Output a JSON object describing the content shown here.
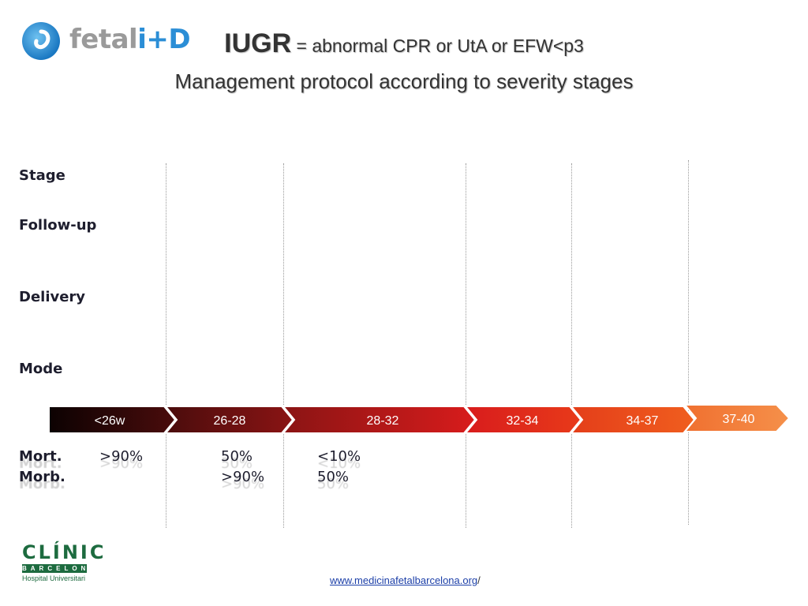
{
  "header": {
    "logo_text_main": "fetal",
    "logo_text_accent": "i+D",
    "title_bold": "IUGR",
    "title_rest": " = abnormal CPR or UtA or EFW<p3",
    "subtitle": "Management protocol according to severity stages"
  },
  "rows": {
    "stage": "Stage",
    "followup": "Follow-up",
    "delivery": "Delivery",
    "mode": "Mode"
  },
  "stages": [
    {
      "label": "<26w",
      "color": "#1a0606"
    },
    {
      "label": "26-28",
      "color": "#6e1212"
    },
    {
      "label": "28-32",
      "color": "#b8161a"
    },
    {
      "label": "32-34",
      "color": "#e0241c"
    },
    {
      "label": "34-37",
      "color": "#ea4a1a"
    },
    {
      "label": "37-40",
      "color": "#f07a2a"
    }
  ],
  "outcomes": {
    "mort_label": "Mort.",
    "morb_label": "Morb.",
    "mort_26": ">90%",
    "mort_28": "50%",
    "mort_32": "<10%",
    "morb_28": ">90%",
    "morb_32": "50%"
  },
  "footer": {
    "link": "www.medicinafetalbarcelona.org",
    "suffix": "/",
    "clinic_name": "CLÍNIC",
    "clinic_city": "BARCELONA",
    "clinic_sub": "Hospital Universitari"
  }
}
